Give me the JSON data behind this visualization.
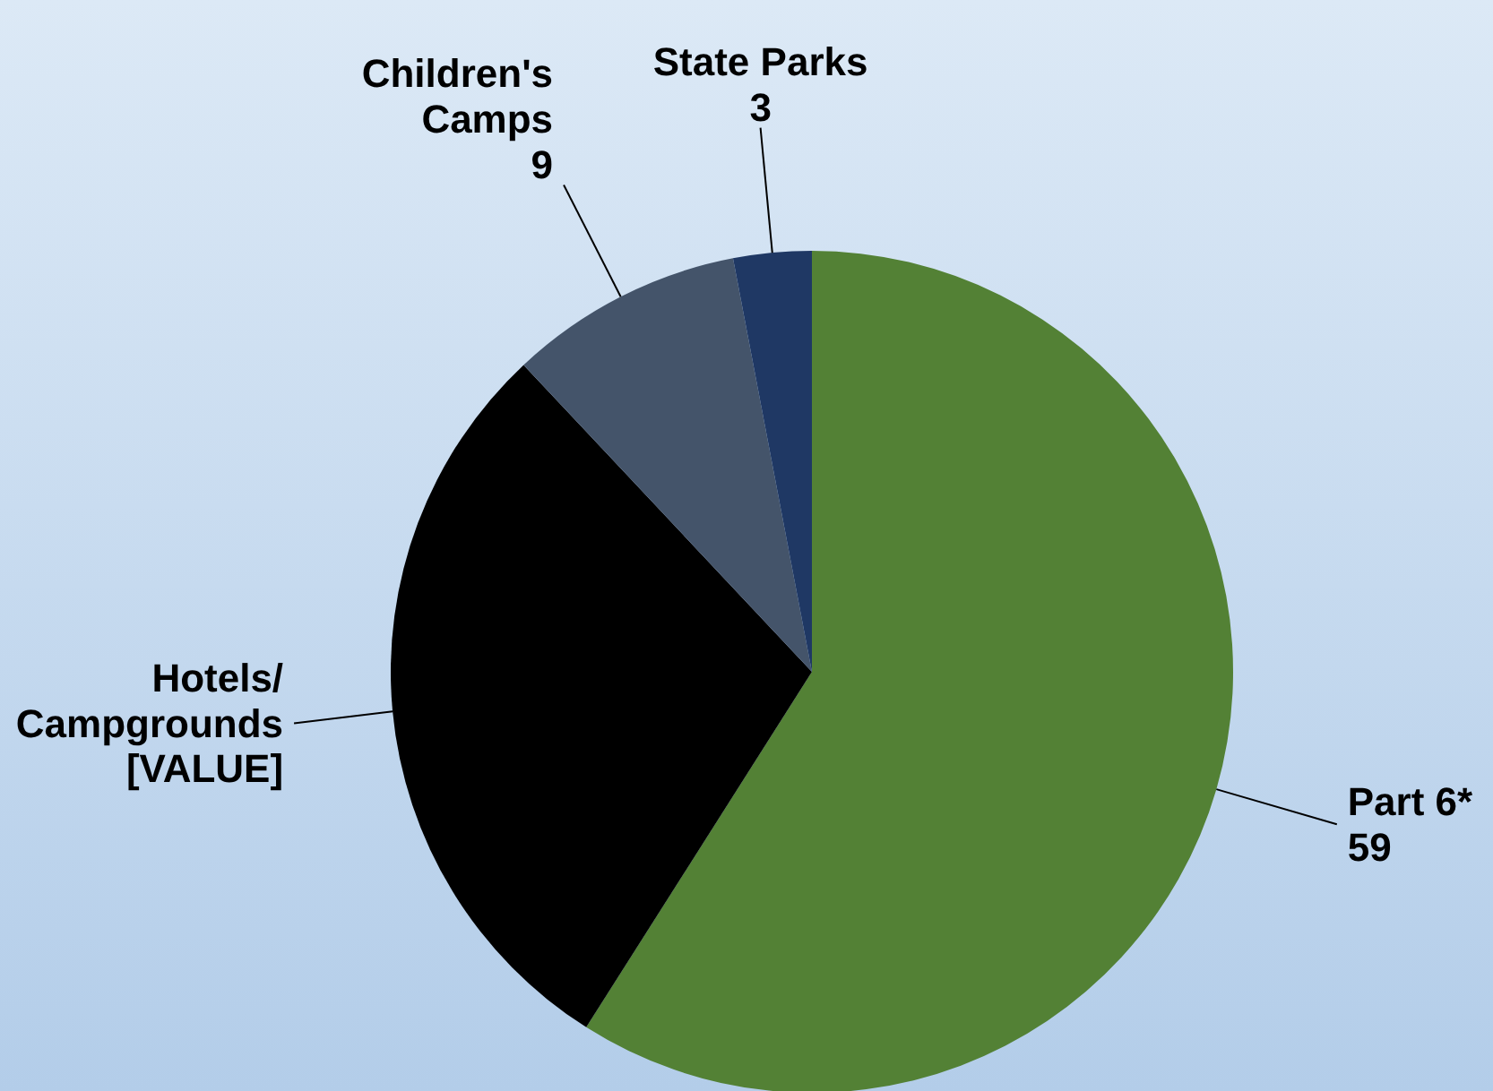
{
  "chart_data": {
    "type": "pie",
    "categories": [
      "Part 6*",
      "Hotels/ Campgrounds",
      "Children's Camps",
      "State Parks"
    ],
    "values": [
      59,
      29,
      9,
      3
    ],
    "colors": [
      "#538135",
      "#000000",
      "#44546a",
      "#1f3864"
    ],
    "value_labels": [
      "59",
      "[VALUE]",
      "9",
      "3"
    ]
  }
}
